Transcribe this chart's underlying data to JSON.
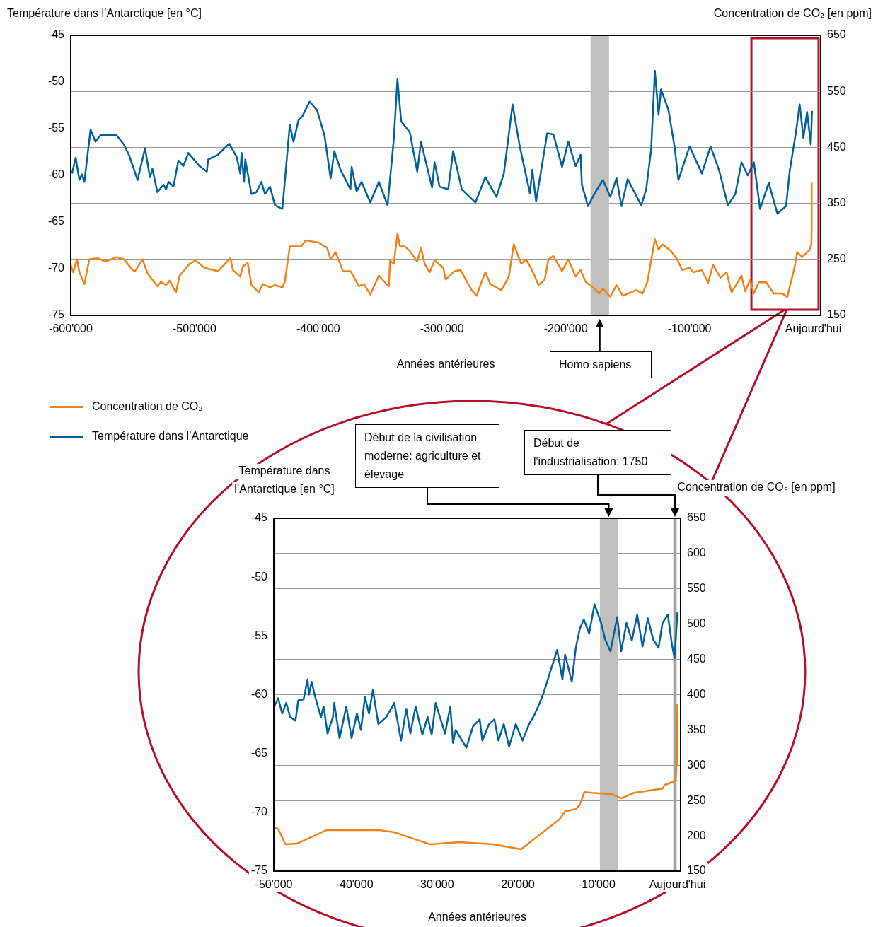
{
  "chart_data": [
    {
      "type": "line",
      "xlabel": "Années antérieures",
      "ylabel": "Température dans l’Antarctique [en °C]",
      "y2label": "Concentration de CO₂ [en ppm]",
      "xlim": [
        -600000,
        6000
      ],
      "xticks": [
        {
          "value": -600000,
          "label": "-600'000"
        },
        {
          "value": -500000,
          "label": "-500'000"
        },
        {
          "value": -400000,
          "label": "-400'000"
        },
        {
          "value": -300000,
          "label": "-300'000"
        },
        {
          "value": -200000,
          "label": "-200'000"
        },
        {
          "value": -100000,
          "label": "-100'000"
        },
        {
          "value": 0,
          "label": "Aujourd'hui"
        }
      ],
      "ylim": [
        -75,
        -45
      ],
      "yticks": [
        -45,
        -50,
        -55,
        -60,
        -65,
        -70,
        -75
      ],
      "y2lim": [
        150,
        650
      ],
      "y2ticks": [
        650,
        550,
        450,
        350,
        250,
        150
      ],
      "grid": "y2",
      "legend": "bottom left",
      "bands": [
        {
          "axis": "x",
          "from": -180000,
          "to": -165000,
          "color": "#c0c0c0"
        }
      ],
      "annotations": [
        "Homo sapiens"
      ],
      "series": [
        {
          "name": "Concentration de CO₂",
          "color": "#f0821a",
          "axis": "y2",
          "x": [
            -600000,
            -598000,
            -595000,
            -593000,
            -589000,
            -585000,
            -578000,
            -572000,
            -563000,
            -557000,
            -550000,
            -548000,
            -542000,
            -538000,
            -530000,
            -527000,
            -523000,
            -520000,
            -515000,
            -512000,
            -504000,
            -499000,
            -492000,
            -481000,
            -471000,
            -469000,
            -463000,
            -461000,
            -457000,
            -454000,
            -448000,
            -445000,
            -439000,
            -435000,
            -429000,
            -427000,
            -423000,
            -414000,
            -410000,
            -400000,
            -393000,
            -390000,
            -386000,
            -380000,
            -374000,
            -367000,
            -363000,
            -358000,
            -351000,
            -344000,
            -343000,
            -342000,
            -339000,
            -336000,
            -334000,
            -330000,
            -326000,
            -320000,
            -317000,
            -314000,
            -310000,
            -306000,
            -299000,
            -297000,
            -290000,
            -285000,
            -276000,
            -272000,
            -268000,
            -265000,
            -261000,
            -252000,
            -246000,
            -242000,
            -236000,
            -232000,
            -229000,
            -226000,
            -222000,
            -217000,
            -214000,
            -210000,
            -203000,
            -198000,
            -192000,
            -188000,
            -184000,
            -178000,
            -173000,
            -170000,
            -164000,
            -159000,
            -154000,
            -143000,
            -138000,
            -134000,
            -128000,
            -125000,
            -122000,
            -115000,
            -110000,
            -106000,
            -100000,
            -97000,
            -90000,
            -85000,
            -81000,
            -75000,
            -70000,
            -66000,
            -58000,
            -55000,
            -51000,
            -48000,
            -44000,
            -38000,
            -32000,
            -25000,
            -21000,
            -15000,
            -13000,
            -9000,
            -3000,
            -1500,
            -1400,
            -1300
          ],
          "values": [
            240,
            227,
            250,
            227,
            206,
            250,
            252,
            246,
            254,
            250,
            231,
            229,
            250,
            225,
            202,
            210,
            204,
            212,
            191,
            221,
            242,
            248,
            235,
            229,
            252,
            231,
            219,
            237,
            244,
            204,
            191,
            206,
            200,
            204,
            200,
            210,
            273,
            273,
            284,
            280,
            271,
            250,
            263,
            229,
            229,
            202,
            206,
            187,
            221,
            204,
            202,
            248,
            242,
            296,
            273,
            273,
            265,
            246,
            271,
            242,
            227,
            248,
            235,
            214,
            229,
            231,
            195,
            185,
            210,
            227,
            206,
            195,
            219,
            277,
            242,
            250,
            238,
            225,
            204,
            214,
            250,
            256,
            229,
            250,
            219,
            231,
            210,
            200,
            189,
            198,
            183,
            204,
            185,
            195,
            189,
            210,
            286,
            267,
            277,
            265,
            250,
            231,
            235,
            227,
            231,
            208,
            240,
            217,
            227,
            191,
            221,
            193,
            214,
            189,
            209,
            209,
            189,
            189,
            183,
            237,
            263,
            254,
            267,
            277,
            300,
            387
          ]
        },
        {
          "name": "Température dans l’Antarctique",
          "color": "#00609c",
          "x": [
            -599000,
            -596000,
            -593000,
            -591000,
            -589000,
            -584000,
            -580000,
            -576000,
            -563000,
            -557000,
            -553000,
            -546000,
            -540000,
            -536000,
            -534000,
            -530000,
            -525000,
            -523000,
            -521000,
            -517000,
            -513000,
            -509000,
            -505000,
            -496000,
            -490000,
            -489000,
            -481000,
            -472000,
            -466000,
            -463000,
            -462000,
            -460000,
            -459000,
            -454000,
            -450000,
            -446000,
            -443000,
            -439000,
            -435000,
            -429000,
            -423000,
            -420000,
            -416000,
            -413000,
            -407000,
            -401000,
            -395000,
            -390000,
            -387000,
            -382000,
            -374000,
            -373000,
            -369000,
            -365000,
            -358000,
            -351000,
            -344000,
            -339000,
            -336000,
            -333000,
            -326000,
            -320000,
            -317000,
            -308000,
            -306000,
            -302000,
            -295000,
            -291000,
            -284000,
            -273000,
            -265000,
            -256000,
            -250000,
            -243000,
            -237000,
            -229000,
            -227000,
            -224000,
            -215000,
            -210000,
            -203000,
            -198000,
            -192000,
            -188000,
            -187000,
            -182000,
            -177000,
            -170000,
            -164000,
            -159000,
            -155000,
            -150000,
            -139000,
            -135000,
            -131000,
            -128000,
            -125000,
            -123000,
            -117000,
            -112000,
            -109000,
            -100000,
            -90000,
            -83000,
            -76000,
            -69000,
            -63000,
            -58000,
            -53000,
            -48000,
            -43000,
            -36000,
            -29000,
            -22000,
            -19000,
            -14000,
            -11000,
            -8000,
            -5000,
            -2000,
            -1000
          ],
          "values": [
            -59.8,
            -58.1,
            -60.5,
            -59.9,
            -60.7,
            -55.1,
            -56.4,
            -55.7,
            -55.7,
            -56.7,
            -57.8,
            -60.5,
            -57.1,
            -60.2,
            -59.3,
            -61.8,
            -61.0,
            -61.5,
            -60.7,
            -61.2,
            -58.4,
            -59.0,
            -57.6,
            -59.0,
            -59.6,
            -58.3,
            -57.8,
            -56.6,
            -58.0,
            -59.8,
            -57.6,
            -60.7,
            -58.3,
            -62.0,
            -61.8,
            -60.7,
            -62.0,
            -61.2,
            -63.2,
            -63.6,
            -54.6,
            -56.4,
            -54.1,
            -53.7,
            -52.1,
            -53.0,
            -55.7,
            -60.3,
            -57.4,
            -59.4,
            -61.5,
            -59.1,
            -61.7,
            -60.7,
            -62.9,
            -60.7,
            -63.2,
            -56.2,
            -49.7,
            -54.2,
            -55.4,
            -59.6,
            -56.4,
            -61.3,
            -58.6,
            -61.2,
            -61.5,
            -57.4,
            -61.5,
            -62.9,
            -60.2,
            -62.3,
            -59.8,
            -52.4,
            -57.0,
            -61.9,
            -59.4,
            -62.8,
            -55.5,
            -55.6,
            -59.1,
            -56.4,
            -59.0,
            -57.8,
            -61.0,
            -63.3,
            -62.0,
            -60.5,
            -62.3,
            -60.3,
            -63.3,
            -60.4,
            -63.2,
            -61.5,
            -57.2,
            -48.8,
            -53.5,
            -50.8,
            -53.0,
            -57.0,
            -60.5,
            -56.9,
            -59.8,
            -56.9,
            -59.5,
            -63.2,
            -62.0,
            -58.6,
            -60.0,
            -58.6,
            -63.6,
            -60.8,
            -64.1,
            -63.3,
            -59.5,
            -55.4,
            -52.4,
            -56.0,
            -53.2,
            -56.7,
            -53.1
          ]
        }
      ]
    },
    {
      "type": "line",
      "xlabel": "Années antérieures",
      "ylabel": "Température dans l’Antarctique [en °C]",
      "y2label": "Concentration de CO₂ [en ppm]",
      "xlim": [
        -50000,
        400
      ],
      "xticks": [
        {
          "value": -50000,
          "label": "-50'000"
        },
        {
          "value": -40000,
          "label": "-40'000"
        },
        {
          "value": -30000,
          "label": "-30'000"
        },
        {
          "value": -20000,
          "label": "-20'000"
        },
        {
          "value": -10000,
          "label": "-10'000"
        },
        {
          "value": 0,
          "label": "Aujourd'hui"
        }
      ],
      "ylim": [
        -75,
        -45
      ],
      "yticks": [
        -45,
        -50,
        -55,
        -60,
        -65,
        -70,
        -75
      ],
      "y2lim": [
        150,
        650
      ],
      "y2ticks": [
        650,
        600,
        550,
        500,
        450,
        400,
        350,
        300,
        250,
        200,
        150
      ],
      "grid": "y2",
      "bands": [
        {
          "axis": "x",
          "from": -9600,
          "to": -7400,
          "color": "#c0c0c0"
        },
        {
          "axis": "x",
          "from": -500,
          "to": -100,
          "color": "#a0a0a0"
        }
      ],
      "annotations": [
        "Début de la civilisation moderne: agriculture et élevage",
        "Début de l'industrialisation: 1750"
      ],
      "series": [
        {
          "color": "#f0821a",
          "axis": "y2",
          "x": [
            -50000,
            -49460,
            -48560,
            -47140,
            -43500,
            -36890,
            -35070,
            -30610,
            -26970,
            -22840,
            -19360,
            -14570,
            -13910,
            -12580,
            -12090,
            -11520,
            -10600,
            -8120,
            -6960,
            -5380,
            -1840,
            -1600,
            -200,
            -100,
            -50,
            0
          ],
          "values": [
            212,
            210,
            188,
            189,
            208,
            208,
            205,
            188,
            191,
            188,
            181,
            224,
            235,
            238,
            244,
            262,
            261,
            259,
            253,
            261,
            267,
            272,
            278,
            300,
            340,
            387
          ]
        },
        {
          "color": "#00609c",
          "x": [
            -49950,
            -49460,
            -48960,
            -48460,
            -47970,
            -47310,
            -46980,
            -46310,
            -45820,
            -45650,
            -45320,
            -44830,
            -44160,
            -43830,
            -43340,
            -42680,
            -42510,
            -41850,
            -41020,
            -40360,
            -39700,
            -39200,
            -38710,
            -38210,
            -37720,
            -37050,
            -36060,
            -35070,
            -34240,
            -33580,
            -33090,
            -32430,
            -31600,
            -30940,
            -30440,
            -29950,
            -28790,
            -28130,
            -27800,
            -27470,
            -26140,
            -25320,
            -24490,
            -24160,
            -23330,
            -22670,
            -22170,
            -21510,
            -20850,
            -20020,
            -19190,
            -18370,
            -17710,
            -17050,
            -16550,
            -15730,
            -14900,
            -14240,
            -13910,
            -13080,
            -12580,
            -12090,
            -11590,
            -10930,
            -10270,
            -9440,
            -8950,
            -8290,
            -7460,
            -6960,
            -6300,
            -5640,
            -4980,
            -4320,
            -3660,
            -3000,
            -2340,
            -1840,
            -1180,
            -680,
            -350,
            0
          ],
          "values": [
            -61.0,
            -60.3,
            -61.6,
            -60.7,
            -61.9,
            -62.2,
            -60.5,
            -60.4,
            -58.7,
            -60.0,
            -58.9,
            -60.3,
            -61.9,
            -61.0,
            -63.3,
            -61.9,
            -60.7,
            -63.7,
            -61.0,
            -63.7,
            -61.6,
            -63.0,
            -60.2,
            -61.6,
            -59.6,
            -62.5,
            -61.9,
            -60.7,
            -63.9,
            -61.2,
            -63.3,
            -61.0,
            -63.4,
            -61.9,
            -63.4,
            -60.7,
            -63.3,
            -61.0,
            -64.1,
            -63.0,
            -64.5,
            -62.7,
            -62.1,
            -63.9,
            -62.5,
            -62.1,
            -63.9,
            -62.5,
            -64.4,
            -62.5,
            -63.9,
            -62.5,
            -61.7,
            -60.7,
            -59.8,
            -58.0,
            -56.2,
            -58.7,
            -56.6,
            -58.9,
            -56.0,
            -54.4,
            -53.6,
            -54.8,
            -52.3,
            -53.9,
            -55.3,
            -56.3,
            -53.4,
            -56.3,
            -53.9,
            -55.4,
            -53.2,
            -55.9,
            -53.5,
            -55.3,
            -56.0,
            -53.9,
            -53.2,
            -55.7,
            -56.9,
            -53.0
          ]
        }
      ]
    }
  ]
}
